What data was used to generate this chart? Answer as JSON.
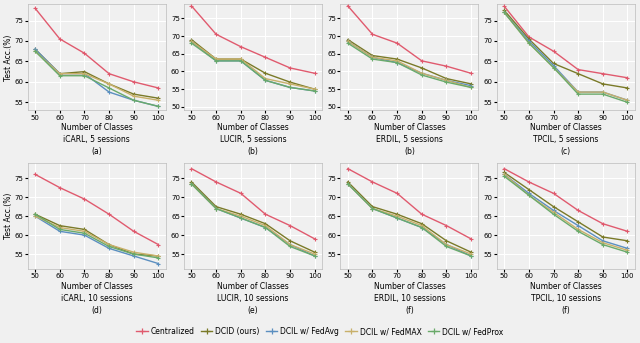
{
  "x": [
    50,
    60,
    70,
    80,
    90,
    100
  ],
  "subplots": [
    {
      "title": "iCARL, 5 sessions",
      "label": "(a)",
      "ylim": [
        53,
        79
      ],
      "yticks": [
        55,
        60,
        65,
        70,
        75
      ],
      "centralized": [
        78.0,
        70.5,
        67.0,
        62.0,
        60.0,
        58.5
      ],
      "dcid": [
        68.0,
        62.0,
        62.5,
        59.5,
        57.0,
        56.0
      ],
      "fedavg": [
        68.0,
        62.0,
        62.0,
        57.5,
        55.5,
        54.0
      ],
      "fedmax": [
        67.5,
        62.0,
        62.0,
        59.5,
        56.5,
        55.5
      ],
      "fedprox": [
        67.5,
        61.5,
        61.5,
        58.5,
        55.5,
        54.0
      ]
    },
    {
      "title": "LUCIR, 5 sessions",
      "label": "(b)",
      "ylim": [
        49,
        79
      ],
      "yticks": [
        50,
        55,
        60,
        65,
        70,
        75
      ],
      "centralized": [
        78.5,
        70.5,
        67.0,
        64.0,
        61.0,
        59.5
      ],
      "dcid": [
        69.0,
        63.5,
        63.5,
        59.5,
        57.0,
        55.0
      ],
      "fedavg": [
        68.5,
        63.0,
        63.0,
        57.5,
        55.5,
        54.5
      ],
      "fedmax": [
        68.5,
        63.5,
        63.5,
        58.0,
        56.5,
        55.0
      ],
      "fedprox": [
        68.0,
        63.0,
        63.0,
        57.5,
        55.5,
        54.5
      ]
    },
    {
      "title": "ERDIL, 5 sessions",
      "label": "(b)",
      "ylim": [
        49,
        79
      ],
      "yticks": [
        50,
        55,
        60,
        65,
        70,
        75
      ],
      "centralized": [
        78.5,
        70.5,
        68.0,
        63.0,
        61.5,
        59.5
      ],
      "dcid": [
        69.0,
        64.5,
        63.5,
        61.0,
        58.0,
        56.5
      ],
      "fedavg": [
        68.5,
        64.0,
        62.5,
        59.5,
        57.5,
        56.0
      ],
      "fedmax": [
        68.5,
        64.0,
        63.0,
        59.5,
        57.5,
        55.5
      ],
      "fedprox": [
        68.0,
        63.5,
        62.5,
        59.0,
        57.0,
        55.5
      ]
    },
    {
      "title": "TPCIL, 5 sessions",
      "label": "(c)",
      "ylim": [
        53,
        79
      ],
      "yticks": [
        55,
        60,
        65,
        70,
        75
      ],
      "centralized": [
        78.5,
        71.0,
        67.5,
        63.0,
        62.0,
        61.0
      ],
      "dcid": [
        77.5,
        70.5,
        64.5,
        62.0,
        59.5,
        58.5
      ],
      "fedavg": [
        77.0,
        70.0,
        64.0,
        57.5,
        57.5,
        55.5
      ],
      "fedmax": [
        77.0,
        69.5,
        63.5,
        57.5,
        57.5,
        55.5
      ],
      "fedprox": [
        77.0,
        69.5,
        63.5,
        57.0,
        57.0,
        55.0
      ]
    },
    {
      "title": "iCARL, 10 sessions",
      "label": "(d)",
      "ylim": [
        51,
        79
      ],
      "yticks": [
        55,
        60,
        65,
        70,
        75
      ],
      "centralized": [
        76.0,
        72.5,
        69.5,
        65.5,
        61.0,
        57.5
      ],
      "dcid": [
        65.5,
        62.5,
        61.5,
        57.5,
        55.0,
        54.5
      ],
      "fedavg": [
        65.0,
        61.0,
        60.0,
        56.5,
        54.5,
        52.5
      ],
      "fedmax": [
        65.0,
        62.0,
        61.0,
        57.5,
        55.5,
        54.5
      ],
      "fedprox": [
        65.5,
        61.5,
        60.5,
        57.0,
        55.0,
        54.0
      ]
    },
    {
      "title": "LUCIR, 10 sessions",
      "label": "(e)",
      "ylim": [
        51,
        79
      ],
      "yticks": [
        55,
        60,
        65,
        70,
        75
      ],
      "centralized": [
        77.5,
        74.0,
        71.0,
        65.5,
        62.5,
        59.0
      ],
      "dcid": [
        74.0,
        67.5,
        65.5,
        63.0,
        58.5,
        55.5
      ],
      "fedavg": [
        73.5,
        67.0,
        64.5,
        62.0,
        57.5,
        54.5
      ],
      "fedmax": [
        73.5,
        67.0,
        65.0,
        62.5,
        57.5,
        55.0
      ],
      "fedprox": [
        73.5,
        67.0,
        64.5,
        62.0,
        57.0,
        54.5
      ]
    },
    {
      "title": "ERDIL, 10 sessions",
      "label": "(f)",
      "ylim": [
        51,
        79
      ],
      "yticks": [
        55,
        60,
        65,
        70,
        75
      ],
      "centralized": [
        77.5,
        74.0,
        71.0,
        65.5,
        62.5,
        59.0
      ],
      "dcid": [
        74.0,
        67.5,
        65.5,
        63.0,
        58.5,
        55.5
      ],
      "fedavg": [
        73.5,
        67.0,
        64.5,
        62.0,
        57.5,
        54.5
      ],
      "fedmax": [
        73.5,
        67.0,
        65.0,
        62.5,
        57.5,
        55.0
      ],
      "fedprox": [
        73.5,
        67.0,
        64.5,
        62.0,
        57.0,
        54.5
      ]
    },
    {
      "title": "TPCIL, 10 sessions",
      "label": "(f)",
      "ylim": [
        51,
        79
      ],
      "yticks": [
        55,
        60,
        65,
        70,
        75
      ],
      "centralized": [
        77.5,
        74.0,
        71.0,
        66.5,
        63.0,
        61.0
      ],
      "dcid": [
        76.5,
        72.0,
        67.5,
        63.5,
        59.5,
        58.5
      ],
      "fedavg": [
        76.0,
        71.0,
        66.5,
        62.5,
        58.5,
        56.5
      ],
      "fedmax": [
        76.0,
        70.5,
        66.0,
        61.5,
        58.0,
        56.0
      ],
      "fedprox": [
        75.5,
        70.5,
        65.5,
        61.0,
        57.5,
        55.5
      ]
    }
  ],
  "colors": {
    "centralized": "#e05a6e",
    "dcid": "#7a7a28",
    "fedavg": "#5b8fc0",
    "fedmax": "#c8b06a",
    "fedprox": "#6aaa6a"
  },
  "legend_labels": {
    "centralized": "Centralized",
    "dcid": "DCID (ours)",
    "fedavg": "DCIL w/ FedAvg",
    "fedmax": "DCIL w/ FedMAX",
    "fedprox": "DCIL w/ FedProx"
  },
  "xlabel": "Number of Classes",
  "ylabel": "Test Acc.(%)",
  "xticks": [
    50,
    60,
    70,
    80,
    90,
    100
  ],
  "background_color": "#f0f0f0",
  "grid_color": "#ffffff",
  "linewidth": 1.0,
  "markersize": 3.5,
  "marker": "+"
}
